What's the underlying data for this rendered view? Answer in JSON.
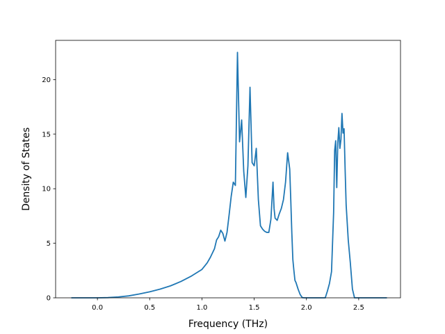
{
  "chart_data": {
    "type": "line",
    "title": "",
    "xlabel": "Frequency (THz)",
    "ylabel": "Density of States",
    "xlim": [
      -0.4,
      2.9
    ],
    "ylim": [
      0,
      23.6
    ],
    "xticks": [
      0.0,
      0.5,
      1.0,
      1.5,
      2.0,
      2.5
    ],
    "xtick_labels": [
      "0.0",
      "0.5",
      "1.0",
      "1.5",
      "2.0",
      "2.5"
    ],
    "yticks": [
      0,
      5,
      10,
      15,
      20
    ],
    "ytick_labels": [
      "0",
      "5",
      "10",
      "15",
      "20"
    ],
    "grid": false,
    "line_color": "#1f77b4",
    "series": [
      {
        "x": [
          -0.25,
          -0.1,
          0.0,
          0.1,
          0.2,
          0.3,
          0.4,
          0.5,
          0.6,
          0.7,
          0.8,
          0.9,
          1.0,
          1.05,
          1.08,
          1.1,
          1.12,
          1.14,
          1.16,
          1.18,
          1.2,
          1.22,
          1.24,
          1.26,
          1.28,
          1.3,
          1.32,
          1.34,
          1.36,
          1.38,
          1.4,
          1.42,
          1.44,
          1.46,
          1.48,
          1.5,
          1.52,
          1.54,
          1.56,
          1.58,
          1.6,
          1.62,
          1.64,
          1.66,
          1.68,
          1.69,
          1.7,
          1.72,
          1.74,
          1.76,
          1.78,
          1.8,
          1.82,
          1.84,
          1.85,
          1.86,
          1.87,
          1.88,
          1.89,
          1.9,
          1.92,
          1.94,
          1.96,
          1.98,
          2.0,
          2.02,
          2.1,
          2.18,
          2.2,
          2.22,
          2.24,
          2.26,
          2.27,
          2.28,
          2.29,
          2.3,
          2.31,
          2.32,
          2.33,
          2.34,
          2.35,
          2.36,
          2.37,
          2.38,
          2.39,
          2.4,
          2.42,
          2.44,
          2.46,
          2.48,
          2.49,
          2.5,
          2.51,
          2.52,
          2.55,
          2.6,
          2.7,
          2.77
        ],
        "y": [
          0.0,
          0.0,
          0.0,
          0.02,
          0.08,
          0.18,
          0.35,
          0.55,
          0.8,
          1.1,
          1.5,
          2.0,
          2.6,
          3.2,
          3.7,
          4.1,
          4.5,
          5.3,
          5.6,
          6.2,
          5.9,
          5.2,
          6.0,
          7.6,
          9.3,
          10.6,
          10.3,
          22.5,
          14.3,
          16.3,
          11.6,
          9.2,
          12.1,
          19.3,
          12.4,
          12.1,
          13.7,
          9.0,
          6.6,
          6.3,
          6.1,
          6.0,
          6.0,
          7.2,
          10.6,
          8.2,
          7.3,
          7.1,
          7.7,
          8.2,
          9.0,
          10.6,
          13.3,
          11.8,
          9.0,
          6.0,
          3.5,
          2.5,
          1.6,
          1.4,
          0.8,
          0.3,
          0.02,
          0.0,
          0.0,
          0.0,
          0.0,
          0.0,
          0.6,
          1.3,
          2.4,
          7.8,
          13.5,
          14.4,
          10.1,
          14.2,
          15.6,
          13.7,
          14.5,
          16.9,
          15.1,
          15.5,
          11.8,
          8.5,
          6.9,
          5.3,
          3.2,
          0.8,
          0.0,
          0.0,
          0.0,
          0.0,
          0.0,
          0.0,
          0.0,
          0.0,
          0.0,
          0.0
        ]
      }
    ]
  }
}
